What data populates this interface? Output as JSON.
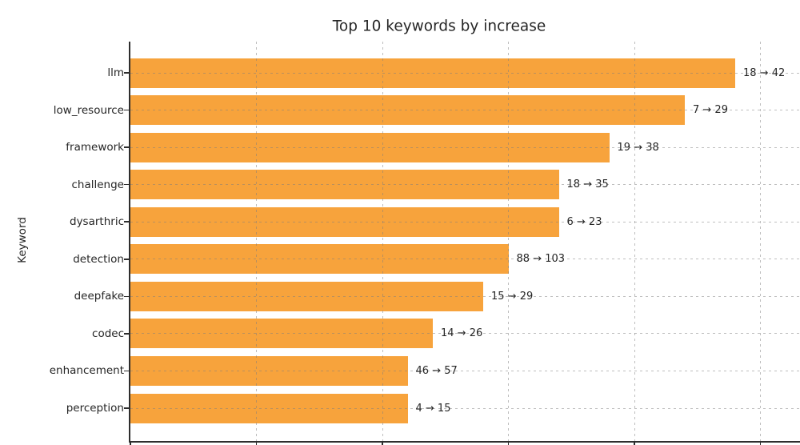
{
  "figure": {
    "background": "#ffffff",
    "text_color": "#262626"
  },
  "chart_data": {
    "type": "bar",
    "orientation": "horizontal",
    "title": "Top 10 keywords by increase",
    "xlabel": "",
    "ylabel": "Keyword",
    "categories": [
      "llm",
      "low_resource",
      "framework",
      "challenge",
      "dysarthric",
      "detection",
      "deepfake",
      "codec",
      "enhancement",
      "perception"
    ],
    "series": [
      {
        "name": "increase",
        "values": [
          24,
          22,
          19,
          17,
          17,
          15,
          14,
          12,
          11,
          11
        ]
      }
    ],
    "counts_before": [
      18,
      7,
      19,
      18,
      6,
      88,
      15,
      14,
      46,
      4
    ],
    "counts_after": [
      42,
      29,
      38,
      35,
      23,
      103,
      29,
      26,
      57,
      15
    ],
    "annotations": [
      "18 → 42",
      "7 → 29",
      "19 → 38",
      "18 → 35",
      "6 → 23",
      "88 → 103",
      "15 → 29",
      "14 → 26",
      "46 → 57",
      "4 → 15"
    ],
    "xlim": [
      0,
      26.6
    ],
    "x_gridlines": [
      5,
      10,
      15,
      20,
      25
    ],
    "x_ticks": [
      0,
      5,
      10,
      15,
      20,
      25
    ],
    "grid": true,
    "legend": "none",
    "bar_color": "#F7A33C",
    "grid_color": "#7d7d7d",
    "spine_color": "#2e2e2e"
  }
}
